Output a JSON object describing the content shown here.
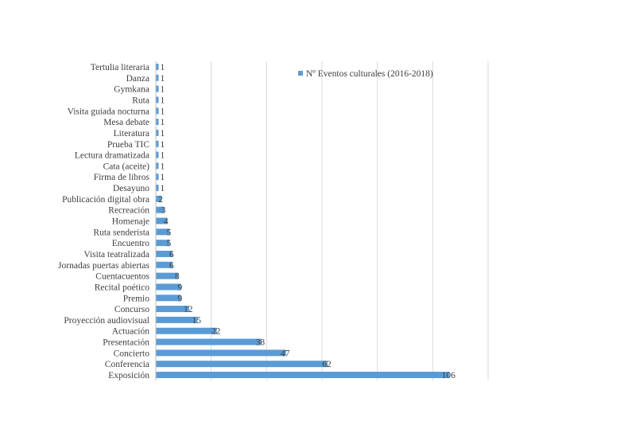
{
  "chart_data": {
    "type": "bar",
    "orientation": "horizontal",
    "categories": [
      "Tertulia literaria",
      "Danza",
      "Gymkana",
      "Ruta",
      "Visita guiada nocturna",
      "Mesa debate",
      "Literatura",
      "Prueba TIC",
      "Lectura dramatizada",
      "Cata (aceite)",
      "Firma de libros",
      "Desayuno",
      "Publicación digital obra",
      "Recreación",
      "Homenaje",
      "Ruta senderista",
      "Encuentro",
      "Visita teatralizada",
      "Jornadas puertas abiertas",
      "Cuentacuentos",
      "Recital poético",
      "Premio",
      "Concurso",
      "Proyección audiovisual",
      "Actuación",
      "Presentación",
      "Concierto",
      "Conferencia",
      "Exposición"
    ],
    "series": [
      {
        "name": "Nº Eventos culturales (2016-2018)",
        "values": [
          1,
          1,
          1,
          1,
          1,
          1,
          1,
          1,
          1,
          1,
          1,
          1,
          2,
          3,
          4,
          5,
          5,
          6,
          6,
          8,
          9,
          9,
          12,
          15,
          22,
          38,
          47,
          62,
          106
        ],
        "color": "#5b9bd5"
      }
    ],
    "xlim": [
      0,
      120
    ],
    "grid": true,
    "axis_tick_labels_shown": false,
    "data_labels": true,
    "legend": "top-right"
  }
}
